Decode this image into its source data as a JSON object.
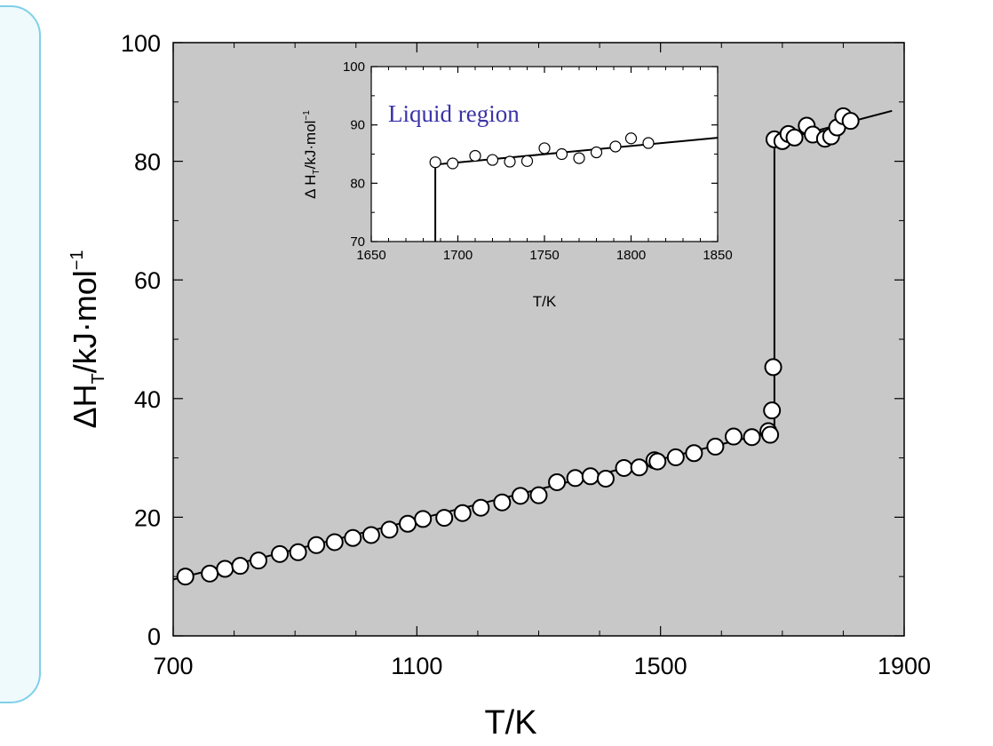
{
  "chart_data": [
    {
      "type": "scatter",
      "xlabel": "T/K",
      "ylabel_main": "ΔH",
      "ylabel_sub": "T",
      "ylabel_rest": "/kJ·mol",
      "ylabel_sup": "−1",
      "xlim": [
        700,
        1900
      ],
      "ylim": [
        0,
        100
      ],
      "xticks": [
        "700",
        "1100",
        "1500",
        "1900"
      ],
      "yticks": [
        "0",
        "20",
        "40",
        "60",
        "80",
        "100"
      ],
      "background": "#c8c8c8",
      "marker": "open-circle",
      "series": [
        {
          "x": [
            720,
            760,
            785,
            810,
            840,
            875,
            905,
            935,
            965,
            995,
            1025,
            1055,
            1085,
            1110,
            1145,
            1175,
            1205,
            1240,
            1270,
            1300,
            1330,
            1360,
            1385,
            1410,
            1440,
            1465,
            1490,
            1495,
            1525,
            1555,
            1590,
            1620,
            1650,
            1677,
            1680,
            1683,
            1685,
            1687,
            1700,
            1710,
            1720,
            1740,
            1750,
            1770,
            1780,
            1790,
            1800,
            1812
          ],
          "y": [
            10,
            10.5,
            11.3,
            11.8,
            12.7,
            13.8,
            14.1,
            15.3,
            15.8,
            16.5,
            17.0,
            17.9,
            18.9,
            19.7,
            19.9,
            20.7,
            21.6,
            22.5,
            23.6,
            23.7,
            25.9,
            26.6,
            26.9,
            26.5,
            28.3,
            28.4,
            29.6,
            29.4,
            30.1,
            30.8,
            31.9,
            33.6,
            33.5,
            34.5,
            33.9,
            38.0,
            45.3,
            83.7,
            83.4,
            84.6,
            84.0,
            86.0,
            84.5,
            83.8,
            84.2,
            85.7,
            87.6,
            86.8
          ]
        }
      ],
      "fit_line": {
        "x": [
          700,
          1687,
          1687,
          1880
        ],
        "y": [
          9.5,
          34.5,
          83.3,
          88.5
        ]
      }
    },
    {
      "type": "scatter",
      "xlabel": "T/K",
      "ylabel_main": "Δ H",
      "ylabel_sub": "T",
      "ylabel_rest": "/kJ·mol",
      "ylabel_sup": "−1",
      "annotation": "Liquid region",
      "annotation_color": "#3b32a8",
      "xlim": [
        1650,
        1850
      ],
      "ylim": [
        70,
        100
      ],
      "xticks": [
        "1650",
        "1700",
        "1750",
        "1800",
        "1850"
      ],
      "yticks": [
        "70",
        "80",
        "90",
        "100"
      ],
      "background": "#ffffff",
      "marker": "open-circle",
      "series": [
        {
          "x": [
            1687,
            1697,
            1710,
            1720,
            1730,
            1740,
            1750,
            1760,
            1770,
            1780,
            1791,
            1800,
            1810
          ],
          "y": [
            83.6,
            83.4,
            84.7,
            84.0,
            83.7,
            83.8,
            86.0,
            85.0,
            84.3,
            85.3,
            86.3,
            87.7,
            86.9
          ]
        }
      ],
      "fit_line": {
        "x": [
          1687,
          1687,
          1850
        ],
        "y": [
          70,
          83.2,
          87.8
        ]
      }
    }
  ]
}
